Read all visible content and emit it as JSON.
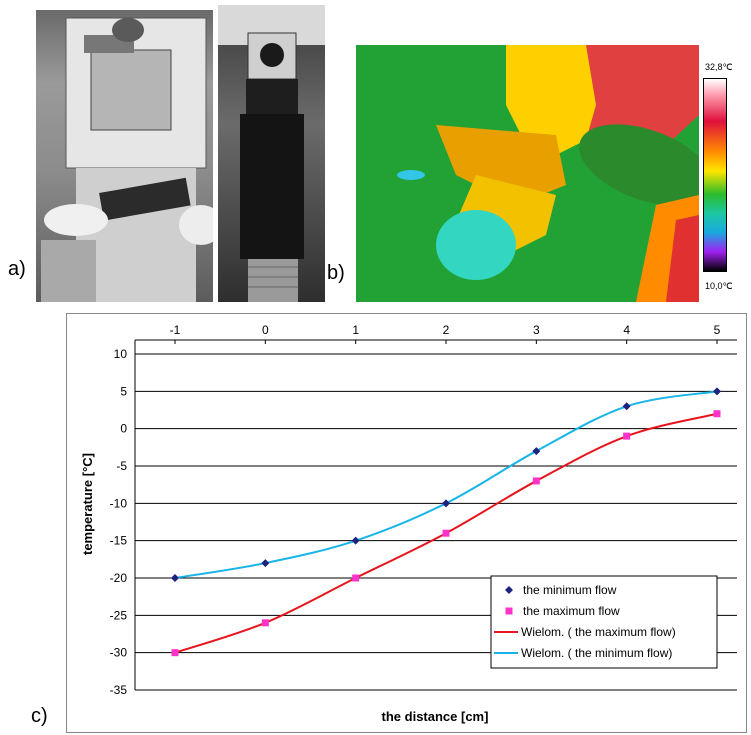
{
  "panels": {
    "a_label": "a)",
    "b_label": "b)",
    "c_label": "c)"
  },
  "thermogram": {
    "scale_max": "32,8℃",
    "scale_min": "10,0℃"
  },
  "chart_data": {
    "type": "scatter",
    "xlabel": "the distance [cm]",
    "ylabel": "temperature [°C]",
    "x_ticks": [
      "-1",
      "0",
      "1",
      "2",
      "3",
      "4",
      "5"
    ],
    "y_ticks": [
      "10",
      "5",
      "0",
      "-5",
      "-10",
      "-15",
      "-20",
      "-25",
      "-30",
      "-35"
    ],
    "xlim": [
      -1,
      5
    ],
    "ylim": [
      -35,
      10
    ],
    "grid": "horizontal",
    "legend_position": "bottom-right",
    "series": [
      {
        "name": "the minimum flow",
        "kind": "points",
        "marker": "diamond",
        "color": "#1a237e",
        "x": [
          -1,
          0,
          1,
          2,
          3,
          4,
          5
        ],
        "y": [
          -20,
          -18,
          -15,
          -10,
          -3,
          3,
          5
        ]
      },
      {
        "name": "the maximum flow",
        "kind": "points",
        "marker": "square",
        "color": "#ff33cc",
        "x": [
          -1,
          0,
          1,
          2,
          3,
          4,
          5
        ],
        "y": [
          -30,
          -26,
          -20,
          -14,
          -7,
          -1,
          2
        ]
      },
      {
        "name": "Wielom. ( the maximum flow)",
        "kind": "trend",
        "color": "#e8141c",
        "x": [
          -1,
          0,
          1,
          2,
          3,
          4,
          5
        ],
        "y": [
          -30,
          -26,
          -20,
          -14,
          -7,
          -1,
          2
        ]
      },
      {
        "name": "Wielom. ( the minimum flow)",
        "kind": "trend",
        "color": "#19b5e8",
        "x": [
          -1,
          0,
          1,
          2,
          3,
          4,
          5
        ],
        "y": [
          -20,
          -18,
          -15,
          -10,
          -3,
          3,
          5
        ]
      }
    ]
  }
}
